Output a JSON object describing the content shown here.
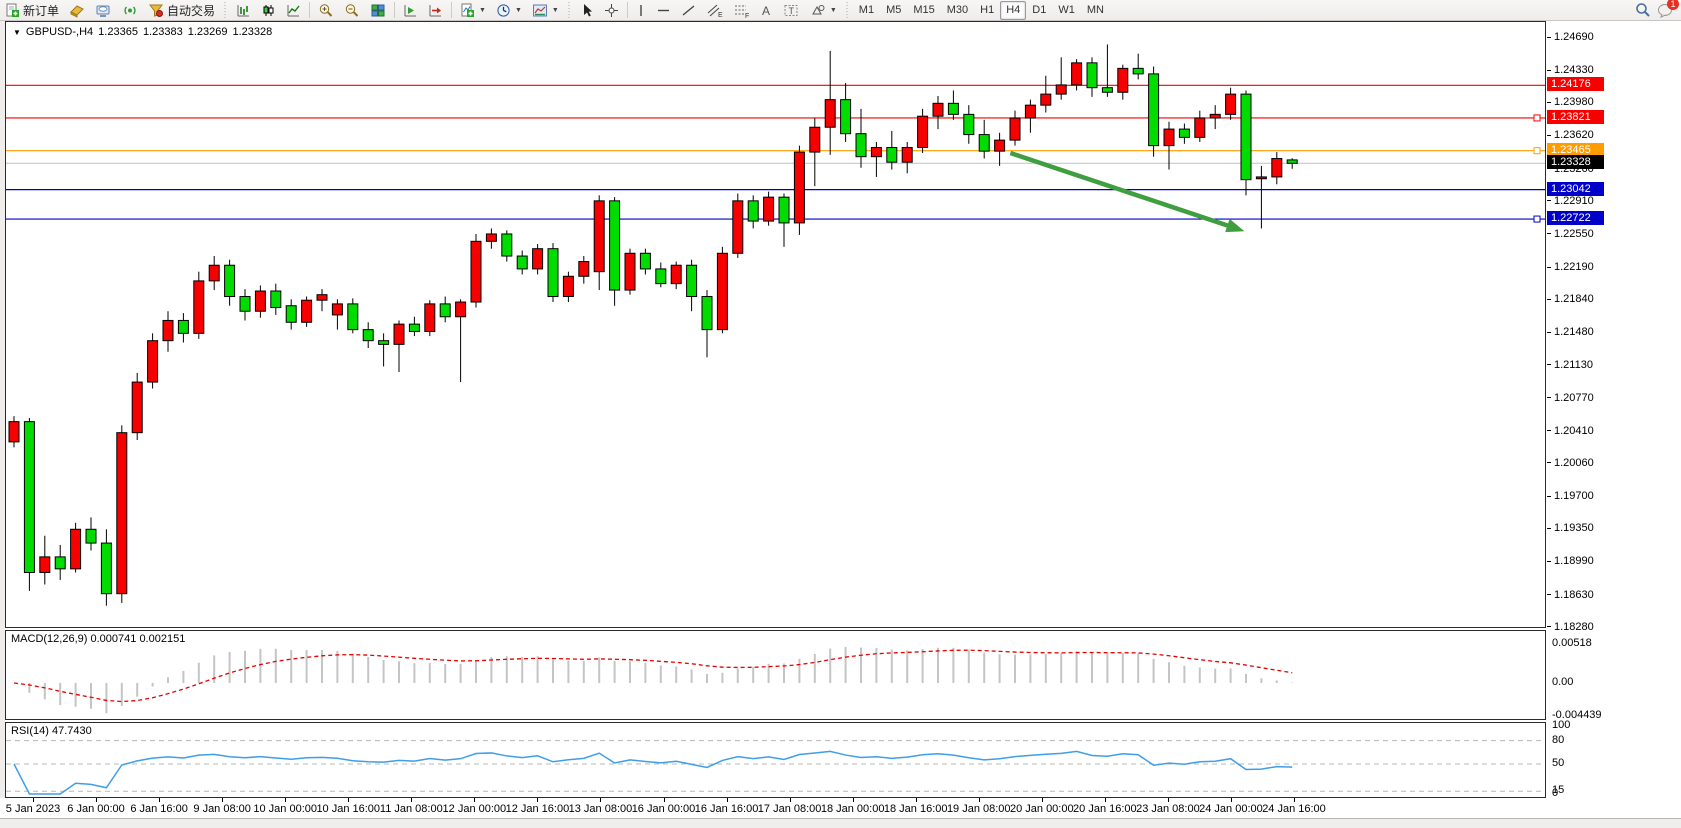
{
  "toolbar": {
    "new_order_label": "新订单",
    "autotrading_label": "自动交易",
    "timeframes": [
      "M1",
      "M5",
      "M15",
      "M30",
      "H1",
      "H4",
      "D1",
      "W1",
      "MN"
    ],
    "active_timeframe": "H4",
    "notification_count": "1",
    "glyphs": {
      "text_tool": "A",
      "channel_tool": "E",
      "fibo_tool": "F",
      "label_tool": "T"
    }
  },
  "window": {
    "ohlc_info": {
      "symbol": "GBPUSD-,H4",
      "open": "1.23365",
      "high": "1.23383",
      "low": "1.23269",
      "close": "1.23328"
    }
  },
  "macd": {
    "label": "MACD(12,26,9)",
    "value": "0.000741",
    "signal_value": "0.002151",
    "axis_labels": [
      "0.00518",
      "0.00",
      "-0.004439"
    ],
    "fast": 12,
    "slow": 26,
    "smoothing": 9
  },
  "rsi": {
    "label": "RSI(14)",
    "value": "47.7430",
    "period": 14,
    "levels": [
      80,
      50,
      15
    ],
    "axis_labels": [
      "100",
      "80",
      "50",
      "15",
      "0"
    ]
  },
  "chart_data": {
    "type": "candlestick",
    "symbol": "GBPUSD-",
    "timeframe": "H4",
    "ylim": [
      1.1828,
      1.2469
    ],
    "colors": {
      "bull": "#f60000",
      "bear": "#00dc00",
      "outline": "#000000",
      "macd_hist": "#c4c4c4",
      "macd_signal": "#e60000",
      "rsi_line": "#3e9ee8"
    },
    "price_ticks": [
      "1.24690",
      "1.24330",
      "1.23980",
      "1.23620",
      "1.23260",
      "1.22910",
      "1.22550",
      "1.22190",
      "1.21840",
      "1.21480",
      "1.21130",
      "1.20770",
      "1.20410",
      "1.20060",
      "1.19700",
      "1.19350",
      "1.18990",
      "1.18630",
      "1.18280"
    ],
    "price_badges": [
      {
        "value": "1.24176",
        "color": "#f60000"
      },
      {
        "value": "1.23821",
        "color": "#f60000"
      },
      {
        "value": "1.23465",
        "color": "#ff9d00"
      },
      {
        "value": "1.23328",
        "color": "#000000"
      },
      {
        "value": "1.23042",
        "color": "#0000c8"
      },
      {
        "value": "1.22722",
        "color": "#0000c8"
      }
    ],
    "hlines": [
      {
        "price": 1.24176,
        "color": "#f60000",
        "handle": false
      },
      {
        "price": 1.23821,
        "color": "#f60000",
        "handle": true
      },
      {
        "price": 1.23465,
        "color": "#ff9d00",
        "handle": true
      },
      {
        "price": 1.23328,
        "color": "#c8c8c8",
        "handle": false
      },
      {
        "price": 1.23042,
        "color": "#0000c8",
        "handle": false
      },
      {
        "price": 1.22722,
        "color": "#0000c8",
        "handle": true
      }
    ],
    "arrow": {
      "start": {
        "bar": 64.7,
        "price": 1.2344
      },
      "end": {
        "bar": 79.9,
        "price": 1.2259
      },
      "color": "#3f9e3f"
    },
    "time_labels": [
      "5 Jan 2023",
      "6 Jan 00:00",
      "6 Jan 16:00",
      "9 Jan 08:00",
      "10 Jan 00:00",
      "10 Jan 16:00",
      "11 Jan 08:00",
      "12 Jan 00:00",
      "12 Jan 16:00",
      "13 Jan 08:00",
      "16 Jan 00:00",
      "16 Jan 16:00",
      "17 Jan 08:00",
      "18 Jan 00:00",
      "18 Jan 16:00",
      "19 Jan 08:00",
      "20 Jan 00:00",
      "20 Jan 16:00",
      "23 Jan 08:00",
      "24 Jan 00:00",
      "24 Jan 16:00"
    ],
    "ohlc": [
      [
        1.203,
        1.2058,
        1.2024,
        1.2052
      ],
      [
        1.2052,
        1.2056,
        1.1868,
        1.1888
      ],
      [
        1.1888,
        1.1928,
        1.1875,
        1.1905
      ],
      [
        1.1905,
        1.1918,
        1.188,
        1.1892
      ],
      [
        1.1892,
        1.1942,
        1.1888,
        1.1935
      ],
      [
        1.1935,
        1.1948,
        1.1912,
        1.192
      ],
      [
        1.192,
        1.1935,
        1.1852,
        1.1865
      ],
      [
        1.1865,
        1.2048,
        1.1855,
        1.204
      ],
      [
        1.204,
        1.2105,
        1.2032,
        1.2095
      ],
      [
        1.2095,
        1.2148,
        1.2088,
        1.214
      ],
      [
        1.214,
        1.2172,
        1.2128,
        1.2162
      ],
      [
        1.2162,
        1.217,
        1.2138,
        1.2148
      ],
      [
        1.2148,
        1.2215,
        1.2142,
        1.2205
      ],
      [
        1.2205,
        1.2232,
        1.2195,
        1.2222
      ],
      [
        1.2222,
        1.2228,
        1.2178,
        1.2188
      ],
      [
        1.2188,
        1.2196,
        1.2162,
        1.2172
      ],
      [
        1.2172,
        1.22,
        1.2165,
        1.2194
      ],
      [
        1.2194,
        1.2202,
        1.2168,
        1.2176
      ],
      [
        1.2178,
        1.2185,
        1.2152,
        1.216
      ],
      [
        1.216,
        1.2188,
        1.2155,
        1.2184
      ],
      [
        1.2184,
        1.2196,
        1.2172,
        1.219
      ],
      [
        1.2168,
        1.2185,
        1.2152,
        1.218
      ],
      [
        1.218,
        1.2186,
        1.2148,
        1.2152
      ],
      [
        1.2152,
        1.216,
        1.2132,
        1.214
      ],
      [
        1.214,
        1.2148,
        1.2112,
        1.2136
      ],
      [
        1.2136,
        1.2162,
        1.2106,
        1.2158
      ],
      [
        1.2158,
        1.2166,
        1.2145,
        1.215
      ],
      [
        1.215,
        1.2184,
        1.2145,
        1.218
      ],
      [
        1.218,
        1.2188,
        1.216,
        1.2166
      ],
      [
        1.2166,
        1.2185,
        1.2095,
        1.2182
      ],
      [
        1.2182,
        1.2256,
        1.2176,
        1.2248
      ],
      [
        1.2248,
        1.2262,
        1.224,
        1.2256
      ],
      [
        1.2256,
        1.226,
        1.2226,
        1.2232
      ],
      [
        1.2232,
        1.2238,
        1.2212,
        1.2218
      ],
      [
        1.2218,
        1.2245,
        1.2212,
        1.224
      ],
      [
        1.224,
        1.2246,
        1.2182,
        1.2188
      ],
      [
        1.2188,
        1.2215,
        1.2182,
        1.221
      ],
      [
        1.221,
        1.2232,
        1.2202,
        1.2226
      ],
      [
        1.2215,
        1.2298,
        1.2195,
        1.2292
      ],
      [
        1.2292,
        1.2296,
        1.2178,
        1.2195
      ],
      [
        1.2195,
        1.224,
        1.219,
        1.2235
      ],
      [
        1.2235,
        1.224,
        1.2212,
        1.2218
      ],
      [
        1.2218,
        1.2225,
        1.2198,
        1.2202
      ],
      [
        1.2202,
        1.2226,
        1.2196,
        1.2222
      ],
      [
        1.2222,
        1.2228,
        1.2172,
        1.2188
      ],
      [
        1.2188,
        1.2195,
        1.2122,
        1.2152
      ],
      [
        1.2152,
        1.2242,
        1.2148,
        1.2235
      ],
      [
        1.2235,
        1.23,
        1.223,
        1.2292
      ],
      [
        1.2292,
        1.2298,
        1.2262,
        1.227
      ],
      [
        1.227,
        1.2302,
        1.2265,
        1.2296
      ],
      [
        1.2296,
        1.23,
        1.2242,
        1.2268
      ],
      [
        1.2268,
        1.2352,
        1.2255,
        1.2345
      ],
      [
        1.2345,
        1.2382,
        1.2308,
        1.2372
      ],
      [
        1.2372,
        1.2455,
        1.2342,
        1.2402
      ],
      [
        1.2402,
        1.242,
        1.2356,
        1.2365
      ],
      [
        1.2365,
        1.2392,
        1.2328,
        1.234
      ],
      [
        1.234,
        1.2356,
        1.2318,
        1.235
      ],
      [
        1.235,
        1.2368,
        1.2326,
        1.2334
      ],
      [
        1.2334,
        1.2356,
        1.2322,
        1.235
      ],
      [
        1.235,
        1.2392,
        1.2344,
        1.2384
      ],
      [
        1.2384,
        1.2406,
        1.237,
        1.2398
      ],
      [
        1.2398,
        1.2412,
        1.238,
        1.2386
      ],
      [
        1.2386,
        1.2396,
        1.2354,
        1.2364
      ],
      [
        1.2364,
        1.238,
        1.2338,
        1.2346
      ],
      [
        1.2346,
        1.2366,
        1.233,
        1.2358
      ],
      [
        1.2358,
        1.239,
        1.2352,
        1.2382
      ],
      [
        1.2382,
        1.2402,
        1.2366,
        1.2396
      ],
      [
        1.2396,
        1.2428,
        1.2388,
        1.2408
      ],
      [
        1.2408,
        1.2448,
        1.2402,
        1.2418
      ],
      [
        1.2418,
        1.2446,
        1.2412,
        1.2442
      ],
      [
        1.2442,
        1.2448,
        1.2405,
        1.2415
      ],
      [
        1.2415,
        1.2462,
        1.2405,
        1.241
      ],
      [
        1.241,
        1.244,
        1.2402,
        1.2436
      ],
      [
        1.2436,
        1.2452,
        1.2424,
        1.243
      ],
      [
        1.243,
        1.2438,
        1.234,
        1.2352
      ],
      [
        1.2352,
        1.2378,
        1.2326,
        1.237
      ],
      [
        1.237,
        1.2376,
        1.2354,
        1.2361
      ],
      [
        1.2361,
        1.239,
        1.2356,
        1.2382
      ],
      [
        1.2382,
        1.2396,
        1.237,
        1.2386
      ],
      [
        1.2386,
        1.2415,
        1.238,
        1.2408
      ],
      [
        1.2408,
        1.2412,
        1.2298,
        1.2315
      ],
      [
        1.2316,
        1.233,
        1.2262,
        1.2318
      ],
      [
        1.2318,
        1.2345,
        1.231,
        1.2338
      ],
      [
        1.23365,
        1.23383,
        1.23269,
        1.23328
      ]
    ]
  }
}
